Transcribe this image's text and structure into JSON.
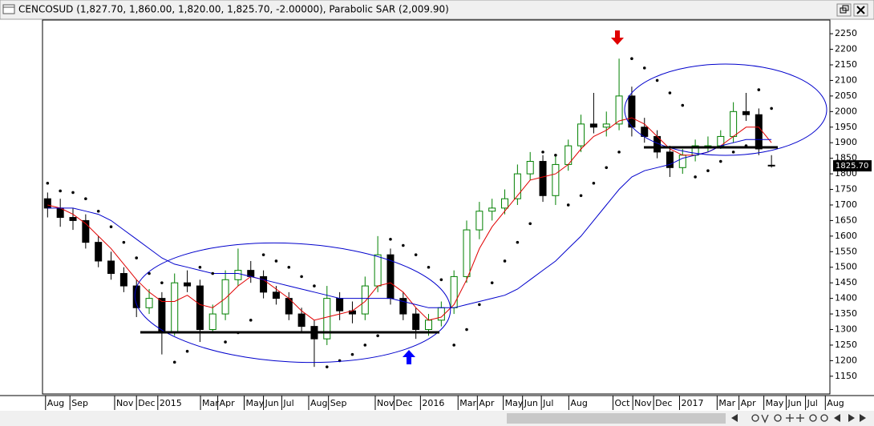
{
  "chart_data": {
    "type": "candlestick",
    "title": "CENCOSUD (1,827.70, 1,860.00, 1,820.00, 1,825.70, -2.00000), Parabolic SAR (2,009.90)",
    "x": [
      1,
      3.5,
      6,
      8.5,
      11,
      13.5,
      16,
      18.5,
      21,
      23.5,
      26,
      28.5,
      31,
      33.5,
      36,
      38.5,
      41,
      43.5,
      46,
      48.5,
      51,
      53.5,
      56,
      58.5,
      61,
      63.5,
      66,
      68.5,
      71,
      73.5,
      76,
      78.5,
      81,
      83.5,
      86,
      88.5,
      91,
      93.5,
      96,
      98.5,
      101,
      103.5,
      106,
      108.5,
      111,
      113.5,
      116,
      118.5,
      121,
      123.5,
      126,
      128.5,
      131,
      133.5,
      136,
      138.5,
      141,
      143.5
    ],
    "open": [
      1720,
      1690,
      1660,
      1650,
      1580,
      1520,
      1480,
      1440,
      1370,
      1400,
      1290,
      1450,
      1440,
      1300,
      1350,
      1460,
      1490,
      1470,
      1420,
      1400,
      1350,
      1310,
      1270,
      1400,
      1360,
      1350,
      1440,
      1540,
      1400,
      1350,
      1300,
      1330,
      1370,
      1470,
      1620,
      1680,
      1690,
      1720,
      1800,
      1840,
      1730,
      1830,
      1890,
      1960,
      1950,
      1960,
      2050,
      1950,
      1920,
      1870,
      1820,
      1860,
      1890,
      1890,
      1920,
      2000,
      1990,
      1827.7
    ],
    "high": [
      1740,
      1720,
      1690,
      1670,
      1600,
      1550,
      1500,
      1460,
      1430,
      1420,
      1480,
      1490,
      1460,
      1380,
      1490,
      1560,
      1520,
      1490,
      1440,
      1420,
      1370,
      1330,
      1440,
      1420,
      1390,
      1470,
      1600,
      1560,
      1420,
      1370,
      1350,
      1390,
      1490,
      1650,
      1710,
      1720,
      1750,
      1830,
      1870,
      1860,
      1860,
      1910,
      1990,
      2060,
      2000,
      2170,
      2080,
      1980,
      1940,
      1890,
      1880,
      1910,
      1920,
      1940,
      2030,
      2060,
      2010,
      1860
    ],
    "low": [
      1660,
      1630,
      1620,
      1560,
      1500,
      1460,
      1420,
      1340,
      1350,
      1220,
      1280,
      1420,
      1260,
      1290,
      1330,
      1440,
      1450,
      1400,
      1380,
      1330,
      1290,
      1180,
      1250,
      1330,
      1320,
      1330,
      1420,
      1380,
      1330,
      1270,
      1280,
      1310,
      1350,
      1450,
      1590,
      1650,
      1670,
      1700,
      1780,
      1710,
      1700,
      1810,
      1870,
      1930,
      1920,
      1940,
      1920,
      1900,
      1850,
      1790,
      1800,
      1840,
      1870,
      1880,
      1900,
      1970,
      1860,
      1820
    ],
    "close": [
      1690,
      1660,
      1650,
      1580,
      1520,
      1480,
      1440,
      1370,
      1400,
      1290,
      1450,
      1440,
      1300,
      1350,
      1460,
      1490,
      1470,
      1420,
      1400,
      1350,
      1310,
      1270,
      1400,
      1360,
      1350,
      1440,
      1540,
      1400,
      1350,
      1300,
      1330,
      1370,
      1470,
      1620,
      1680,
      1690,
      1720,
      1800,
      1840,
      1730,
      1830,
      1890,
      1960,
      1950,
      1960,
      2050,
      1950,
      1920,
      1870,
      1820,
      1860,
      1890,
      1890,
      1920,
      2000,
      1990,
      1880,
      1825.7
    ],
    "up_color": "#008000",
    "down_color": "#000000",
    "sar": {
      "color": "#000000",
      "values": [
        1770,
        1745,
        1740,
        1720,
        1680,
        1630,
        1580,
        1530,
        1480,
        1450,
        1195,
        1230,
        1500,
        1480,
        1260,
        1290,
        1330,
        1540,
        1520,
        1500,
        1470,
        1440,
        1180,
        1200,
        1220,
        1250,
        1280,
        1590,
        1570,
        1540,
        1500,
        1460,
        1250,
        1300,
        1380,
        1450,
        1520,
        1580,
        1640,
        1870,
        1860,
        1700,
        1730,
        1770,
        1820,
        1870,
        2170,
        2140,
        2100,
        2060,
        2020,
        1790,
        1810,
        1840,
        1870,
        1890,
        2070,
        2010
      ]
    },
    "overlays": [
      {
        "color": "#e00000",
        "values": [
          1700,
          1690,
          1670,
          1640,
          1600,
          1560,
          1510,
          1460,
          1420,
          1390,
          1390,
          1410,
          1380,
          1370,
          1400,
          1440,
          1470,
          1460,
          1430,
          1400,
          1360,
          1330,
          1340,
          1350,
          1360,
          1390,
          1440,
          1450,
          1420,
          1370,
          1330,
          1340,
          1380,
          1460,
          1560,
          1630,
          1680,
          1730,
          1780,
          1790,
          1800,
          1830,
          1880,
          1920,
          1940,
          1970,
          1980,
          1960,
          1920,
          1880,
          1860,
          1860,
          1870,
          1890,
          1920,
          1950,
          1950,
          1900
        ]
      },
      {
        "color": "#0000cc",
        "values": [
          1690,
          1690,
          1690,
          1680,
          1670,
          1650,
          1620,
          1590,
          1560,
          1530,
          1510,
          1500,
          1490,
          1480,
          1480,
          1480,
          1470,
          1460,
          1450,
          1440,
          1430,
          1420,
          1410,
          1400,
          1400,
          1400,
          1400,
          1400,
          1390,
          1380,
          1370,
          1370,
          1370,
          1380,
          1390,
          1400,
          1410,
          1430,
          1460,
          1490,
          1520,
          1560,
          1600,
          1650,
          1700,
          1750,
          1790,
          1810,
          1820,
          1830,
          1850,
          1860,
          1870,
          1890,
          1900,
          1910,
          1910,
          1910
        ]
      }
    ],
    "last_price": {
      "value": 1825.7,
      "label": "1825.70"
    },
    "xlim": [
      0,
      155
    ],
    "xticks": [
      {
        "value": 0.6,
        "label": "Aug"
      },
      {
        "value": 5.4,
        "label": "Sep"
      },
      {
        "value": 14.2,
        "label": "Nov"
      },
      {
        "value": 18.5,
        "label": "Dec"
      },
      {
        "value": 22.7,
        "label": "2015"
      },
      {
        "value": 31.1,
        "label": "Mar"
      },
      {
        "value": 34.5,
        "label": "Apr"
      },
      {
        "value": 39.7,
        "label": "May"
      },
      {
        "value": 43.5,
        "label": "Jun"
      },
      {
        "value": 47.1,
        "label": "Jul"
      },
      {
        "value": 52.4,
        "label": "Aug"
      },
      {
        "value": 56.3,
        "label": "Sep"
      },
      {
        "value": 65.5,
        "label": "Nov"
      },
      {
        "value": 69.2,
        "label": "Dec"
      },
      {
        "value": 74.4,
        "label": "2016"
      },
      {
        "value": 81.8,
        "label": "Mar"
      },
      {
        "value": 85.6,
        "label": "Apr"
      },
      {
        "value": 90.7,
        "label": "May"
      },
      {
        "value": 94.5,
        "label": "Jun"
      },
      {
        "value": 98.2,
        "label": "Jul"
      },
      {
        "value": 103.6,
        "label": "Aug"
      },
      {
        "value": 112.3,
        "label": "Oct"
      },
      {
        "value": 116.2,
        "label": "Nov"
      },
      {
        "value": 120.3,
        "label": "Dec"
      },
      {
        "value": 125.4,
        "label": "2017"
      },
      {
        "value": 132.8,
        "label": "Mar"
      },
      {
        "value": 137.1,
        "label": "Apr"
      },
      {
        "value": 142,
        "label": "May"
      },
      {
        "value": 146.4,
        "label": "Jun"
      },
      {
        "value": 150.2,
        "label": "Jul"
      },
      {
        "value": 154.1,
        "label": "Aug"
      }
    ],
    "ylim": [
      1093,
      2294
    ],
    "yticks": [
      1150,
      1200,
      1250,
      1300,
      1350,
      1400,
      1450,
      1500,
      1550,
      1600,
      1650,
      1700,
      1750,
      1800,
      1850,
      1900,
      1950,
      2000,
      2050,
      2100,
      2150,
      2200,
      2250
    ]
  }
}
